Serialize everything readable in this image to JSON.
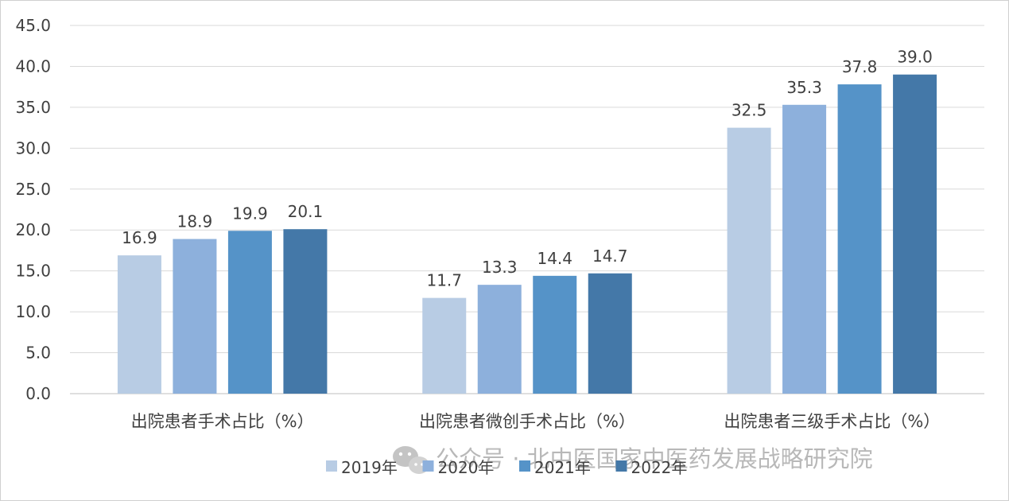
{
  "chart_data": {
    "type": "bar",
    "categories": [
      "出院患者手术占比（%）",
      "出院患者微创手术占比（%）",
      "出院患者三级手术占比（%）"
    ],
    "series": [
      {
        "name": "2019年",
        "color": "#b8cce4",
        "values": [
          16.9,
          11.7,
          32.5
        ]
      },
      {
        "name": "2020年",
        "color": "#8db0dc",
        "values": [
          18.9,
          13.3,
          35.3
        ]
      },
      {
        "name": "2021年",
        "color": "#5593c8",
        "values": [
          19.9,
          14.4,
          37.8
        ]
      },
      {
        "name": "2022年",
        "color": "#4478a8",
        "values": [
          20.1,
          14.7,
          39.0
        ]
      }
    ],
    "y_ticks": [
      "0.0",
      "5.0",
      "10.0",
      "15.0",
      "20.0",
      "25.0",
      "30.0",
      "35.0",
      "40.0",
      "45.0"
    ],
    "ylim": [
      0,
      45
    ],
    "grid": true,
    "legend_position": "bottom",
    "title": "",
    "xlabel": "",
    "ylabel": ""
  },
  "watermark": {
    "text": "公众号 · 北中医国家中医药发展战略研究院",
    "icon": "wechat-icon"
  }
}
